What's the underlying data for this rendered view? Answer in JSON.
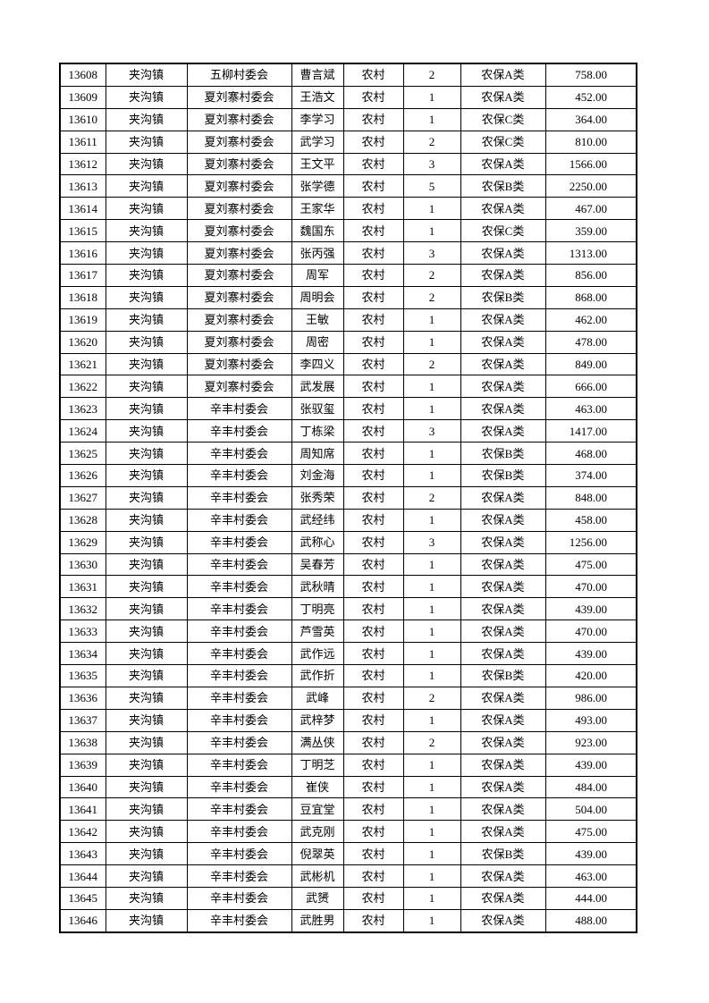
{
  "page": {
    "background_color": "#ffffff",
    "table_border_color": "#000000",
    "text_color": "#000000"
  },
  "table": {
    "column_keys": [
      "record-id",
      "town",
      "village-committee",
      "person-name",
      "residence-type",
      "person-count",
      "insurance-category",
      "amount"
    ],
    "rows": [
      [
        "13608",
        "夹沟镇",
        "五柳村委会",
        "曹言斌",
        "农村",
        "2",
        "农保A类",
        "758.00"
      ],
      [
        "13609",
        "夹沟镇",
        "夏刘寨村委会",
        "王浩文",
        "农村",
        "1",
        "农保A类",
        "452.00"
      ],
      [
        "13610",
        "夹沟镇",
        "夏刘寨村委会",
        "李学习",
        "农村",
        "1",
        "农保C类",
        "364.00"
      ],
      [
        "13611",
        "夹沟镇",
        "夏刘寨村委会",
        "武学习",
        "农村",
        "2",
        "农保C类",
        "810.00"
      ],
      [
        "13612",
        "夹沟镇",
        "夏刘寨村委会",
        "王文平",
        "农村",
        "3",
        "农保A类",
        "1566.00"
      ],
      [
        "13613",
        "夹沟镇",
        "夏刘寨村委会",
        "张学德",
        "农村",
        "5",
        "农保B类",
        "2250.00"
      ],
      [
        "13614",
        "夹沟镇",
        "夏刘寨村委会",
        "王家华",
        "农村",
        "1",
        "农保A类",
        "467.00"
      ],
      [
        "13615",
        "夹沟镇",
        "夏刘寨村委会",
        "魏国东",
        "农村",
        "1",
        "农保C类",
        "359.00"
      ],
      [
        "13616",
        "夹沟镇",
        "夏刘寨村委会",
        "张丙强",
        "农村",
        "3",
        "农保A类",
        "1313.00"
      ],
      [
        "13617",
        "夹沟镇",
        "夏刘寨村委会",
        "周军",
        "农村",
        "2",
        "农保A类",
        "856.00"
      ],
      [
        "13618",
        "夹沟镇",
        "夏刘寨村委会",
        "周明会",
        "农村",
        "2",
        "农保B类",
        "868.00"
      ],
      [
        "13619",
        "夹沟镇",
        "夏刘寨村委会",
        "王敏",
        "农村",
        "1",
        "农保A类",
        "462.00"
      ],
      [
        "13620",
        "夹沟镇",
        "夏刘寨村委会",
        "周密",
        "农村",
        "1",
        "农保A类",
        "478.00"
      ],
      [
        "13621",
        "夹沟镇",
        "夏刘寨村委会",
        "李四义",
        "农村",
        "2",
        "农保A类",
        "849.00"
      ],
      [
        "13622",
        "夹沟镇",
        "夏刘寨村委会",
        "武发展",
        "农村",
        "1",
        "农保A类",
        "666.00"
      ],
      [
        "13623",
        "夹沟镇",
        "辛丰村委会",
        "张驭玺",
        "农村",
        "1",
        "农保A类",
        "463.00"
      ],
      [
        "13624",
        "夹沟镇",
        "辛丰村委会",
        "丁栋梁",
        "农村",
        "3",
        "农保A类",
        "1417.00"
      ],
      [
        "13625",
        "夹沟镇",
        "辛丰村委会",
        "周知席",
        "农村",
        "1",
        "农保B类",
        "468.00"
      ],
      [
        "13626",
        "夹沟镇",
        "辛丰村委会",
        "刘金海",
        "农村",
        "1",
        "农保B类",
        "374.00"
      ],
      [
        "13627",
        "夹沟镇",
        "辛丰村委会",
        "张秀荣",
        "农村",
        "2",
        "农保A类",
        "848.00"
      ],
      [
        "13628",
        "夹沟镇",
        "辛丰村委会",
        "武经纬",
        "农村",
        "1",
        "农保A类",
        "458.00"
      ],
      [
        "13629",
        "夹沟镇",
        "辛丰村委会",
        "武称心",
        "农村",
        "3",
        "农保A类",
        "1256.00"
      ],
      [
        "13630",
        "夹沟镇",
        "辛丰村委会",
        "吴春芳",
        "农村",
        "1",
        "农保A类",
        "475.00"
      ],
      [
        "13631",
        "夹沟镇",
        "辛丰村委会",
        "武秋晴",
        "农村",
        "1",
        "农保A类",
        "470.00"
      ],
      [
        "13632",
        "夹沟镇",
        "辛丰村委会",
        "丁明亮",
        "农村",
        "1",
        "农保A类",
        "439.00"
      ],
      [
        "13633",
        "夹沟镇",
        "辛丰村委会",
        "芦雪英",
        "农村",
        "1",
        "农保A类",
        "470.00"
      ],
      [
        "13634",
        "夹沟镇",
        "辛丰村委会",
        "武作远",
        "农村",
        "1",
        "农保A类",
        "439.00"
      ],
      [
        "13635",
        "夹沟镇",
        "辛丰村委会",
        "武作折",
        "农村",
        "1",
        "农保B类",
        "420.00"
      ],
      [
        "13636",
        "夹沟镇",
        "辛丰村委会",
        "武峰",
        "农村",
        "2",
        "农保A类",
        "986.00"
      ],
      [
        "13637",
        "夹沟镇",
        "辛丰村委会",
        "武梓梦",
        "农村",
        "1",
        "农保A类",
        "493.00"
      ],
      [
        "13638",
        "夹沟镇",
        "辛丰村委会",
        "满丛侠",
        "农村",
        "2",
        "农保A类",
        "923.00"
      ],
      [
        "13639",
        "夹沟镇",
        "辛丰村委会",
        "丁明芝",
        "农村",
        "1",
        "农保A类",
        "439.00"
      ],
      [
        "13640",
        "夹沟镇",
        "辛丰村委会",
        "崔侠",
        "农村",
        "1",
        "农保A类",
        "484.00"
      ],
      [
        "13641",
        "夹沟镇",
        "辛丰村委会",
        "豆宜堂",
        "农村",
        "1",
        "农保A类",
        "504.00"
      ],
      [
        "13642",
        "夹沟镇",
        "辛丰村委会",
        "武克刚",
        "农村",
        "1",
        "农保A类",
        "475.00"
      ],
      [
        "13643",
        "夹沟镇",
        "辛丰村委会",
        "倪翠英",
        "农村",
        "1",
        "农保B类",
        "439.00"
      ],
      [
        "13644",
        "夹沟镇",
        "辛丰村委会",
        "武彬机",
        "农村",
        "1",
        "农保A类",
        "463.00"
      ],
      [
        "13645",
        "夹沟镇",
        "辛丰村委会",
        "武赟",
        "农村",
        "1",
        "农保A类",
        "444.00"
      ],
      [
        "13646",
        "夹沟镇",
        "辛丰村委会",
        "武胜男",
        "农村",
        "1",
        "农保A类",
        "488.00"
      ]
    ]
  }
}
